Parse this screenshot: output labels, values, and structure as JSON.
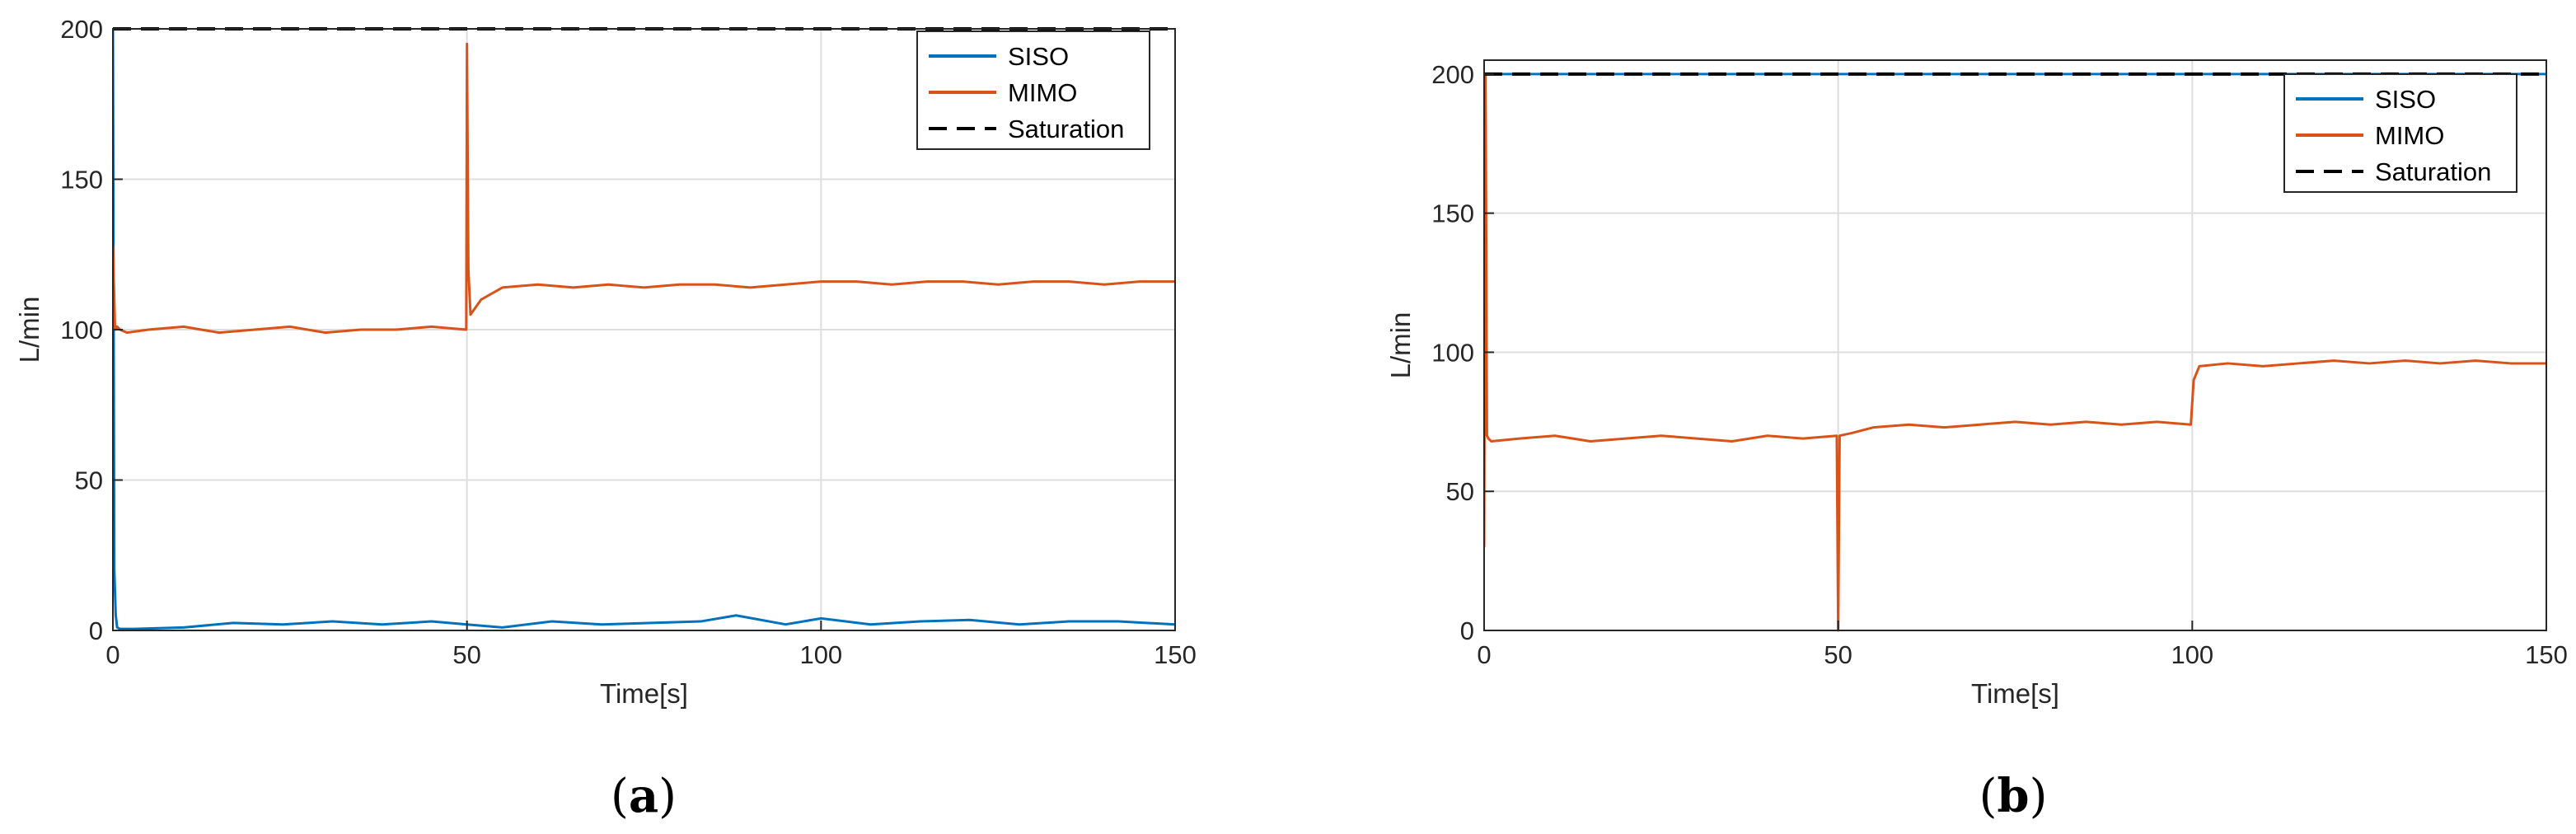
{
  "colors": {
    "siso": "#0072BD",
    "mimo": "#D95319",
    "saturation": "#000000",
    "grid": "#DEDEDE",
    "axis": "#262626"
  },
  "chart_data": [
    {
      "type": "line",
      "panel_label": "a",
      "xlabel": "Time[s]",
      "ylabel": "L/min",
      "xlim": [
        0,
        150
      ],
      "ylim": [
        0,
        200
      ],
      "xticks": [
        "0",
        "50",
        "100",
        "150"
      ],
      "yticks": [
        "0",
        "50",
        "100",
        "150",
        "200"
      ],
      "grid": true,
      "legend_position": "top-right",
      "series": [
        {
          "name": "SISO",
          "color": "#0072BD",
          "x": [
            0,
            0.2,
            0.4,
            0.6,
            1,
            3,
            10,
            17,
            24,
            31,
            38,
            45,
            50,
            55,
            62,
            69,
            76,
            83,
            88,
            95,
            100,
            107,
            114,
            121,
            128,
            135,
            142,
            150
          ],
          "y": [
            200,
            20,
            5,
            1,
            0.5,
            0.5,
            1,
            2.5,
            2,
            3,
            2,
            3,
            2,
            1,
            3,
            2,
            2.5,
            3,
            5,
            2,
            4,
            2,
            3,
            3.5,
            2,
            3,
            3,
            2
          ]
        },
        {
          "name": "MIMO",
          "color": "#D95319",
          "x": [
            0,
            0.3,
            0.6,
            1,
            2,
            5,
            10,
            15,
            20,
            25,
            30,
            35,
            40,
            45,
            49.9,
            50,
            50.2,
            50.5,
            52,
            55,
            60,
            65,
            70,
            75,
            80,
            85,
            90,
            95,
            100,
            105,
            110,
            115,
            120,
            125,
            130,
            135,
            140,
            145,
            150
          ],
          "y": [
            128,
            100,
            101,
            100,
            99,
            100,
            101,
            99,
            100,
            101,
            99,
            100,
            100,
            101,
            100,
            195,
            120,
            105,
            110,
            114,
            115,
            114,
            115,
            114,
            115,
            115,
            114,
            115,
            116,
            116,
            115,
            116,
            116,
            115,
            116,
            116,
            115,
            116,
            116
          ]
        },
        {
          "name": "Saturation",
          "color": "#000000",
          "style": "dashed",
          "x": [
            0,
            150
          ],
          "y": [
            200,
            200
          ]
        }
      ]
    },
    {
      "type": "line",
      "panel_label": "b",
      "xlabel": "Time[s]",
      "ylabel": "L/min",
      "xlim": [
        0,
        150
      ],
      "ylim": [
        0,
        205
      ],
      "xticks": [
        "0",
        "50",
        "100",
        "150"
      ],
      "yticks": [
        "0",
        "50",
        "100",
        "150",
        "200"
      ],
      "grid": true,
      "legend_position": "top-right",
      "series": [
        {
          "name": "SISO",
          "color": "#0072BD",
          "x": [
            0,
            150
          ],
          "y": [
            200,
            200
          ]
        },
        {
          "name": "MIMO",
          "color": "#D95319",
          "x": [
            0,
            0.2,
            0.4,
            0.6,
            1,
            5,
            10,
            15,
            20,
            25,
            30,
            35,
            40,
            45,
            49.8,
            50,
            50.2,
            52,
            55,
            60,
            65,
            70,
            75,
            80,
            85,
            90,
            95,
            99.8,
            100.2,
            101,
            105,
            110,
            115,
            120,
            125,
            130,
            135,
            140,
            145,
            150
          ],
          "y": [
            30,
            200,
            70,
            69,
            68,
            69,
            70,
            68,
            69,
            70,
            69,
            68,
            70,
            69,
            70,
            0,
            70,
            71,
            73,
            74,
            73,
            74,
            75,
            74,
            75,
            74,
            75,
            74,
            90,
            95,
            96,
            95,
            96,
            97,
            96,
            97,
            96,
            97,
            96,
            96
          ]
        },
        {
          "name": "Saturation",
          "color": "#000000",
          "style": "dashed",
          "x": [
            0,
            150
          ],
          "y": [
            200,
            200
          ]
        }
      ]
    }
  ]
}
